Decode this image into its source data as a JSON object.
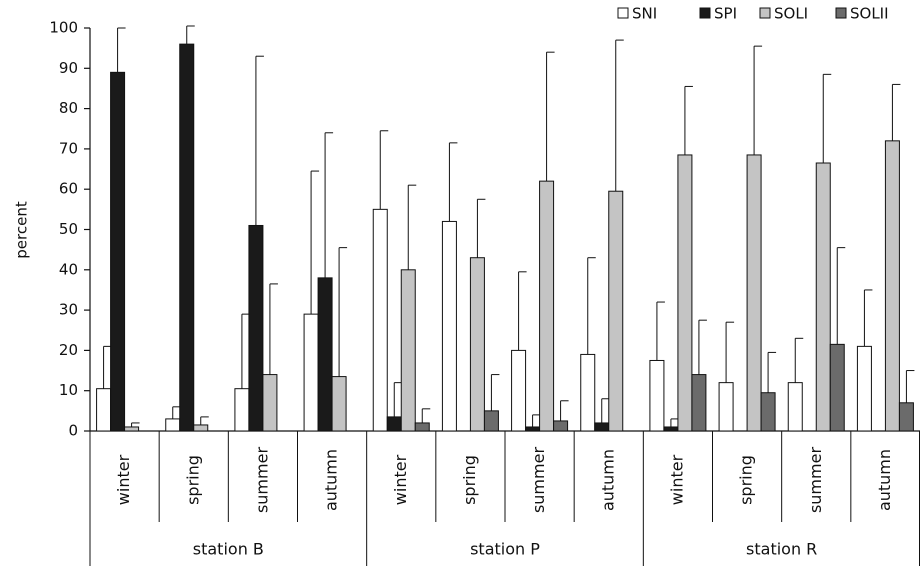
{
  "chart_data": {
    "type": "bar",
    "y_label": "percent",
    "groups": [
      {
        "name": "station B",
        "categories": [
          "winter",
          "spring",
          "summer",
          "autumn"
        ]
      },
      {
        "name": "station P",
        "categories": [
          "winter",
          "spring",
          "summer",
          "autumn"
        ]
      },
      {
        "name": "station R",
        "categories": [
          "winter",
          "spring",
          "summer",
          "autumn"
        ]
      }
    ],
    "series": [
      {
        "name": "SNI",
        "color": "#ffffff",
        "values": [
          10.5,
          3,
          10.5,
          29,
          55,
          52,
          20,
          19,
          17.5,
          12,
          12,
          21
        ],
        "errors": [
          10.5,
          3,
          18.5,
          35.5,
          19.5,
          19.5,
          19.5,
          24,
          14.5,
          15,
          11,
          14
        ]
      },
      {
        "name": "SPI",
        "color": "#1a1a1a",
        "values": [
          89,
          96,
          51,
          38,
          3.5,
          0,
          1,
          2,
          1,
          0,
          0,
          0
        ],
        "errors": [
          11,
          4.5,
          42,
          36,
          8.5,
          0,
          3,
          6,
          2,
          0,
          0,
          0
        ]
      },
      {
        "name": "SOLI",
        "color": "#c4c4c4",
        "values": [
          1,
          1.5,
          14,
          13.5,
          40,
          43,
          62,
          59.5,
          68.5,
          68.5,
          66.5,
          72
        ],
        "errors": [
          1,
          2,
          22.5,
          32,
          21,
          14.5,
          32,
          37.5,
          17,
          27,
          22,
          14
        ]
      },
      {
        "name": "SOLII",
        "color": "#6b6b6b",
        "values": [
          0,
          0,
          0,
          0,
          2,
          5,
          2.5,
          0,
          14,
          9.5,
          21.5,
          7
        ],
        "errors": [
          0,
          0,
          0,
          0,
          3.5,
          9,
          5,
          0,
          13.5,
          10,
          24,
          8
        ]
      }
    ],
    "ylim": [
      0,
      100
    ],
    "yticks": [
      0,
      10,
      20,
      30,
      40,
      50,
      60,
      70,
      80,
      90,
      100
    ],
    "legend": "top-right"
  }
}
